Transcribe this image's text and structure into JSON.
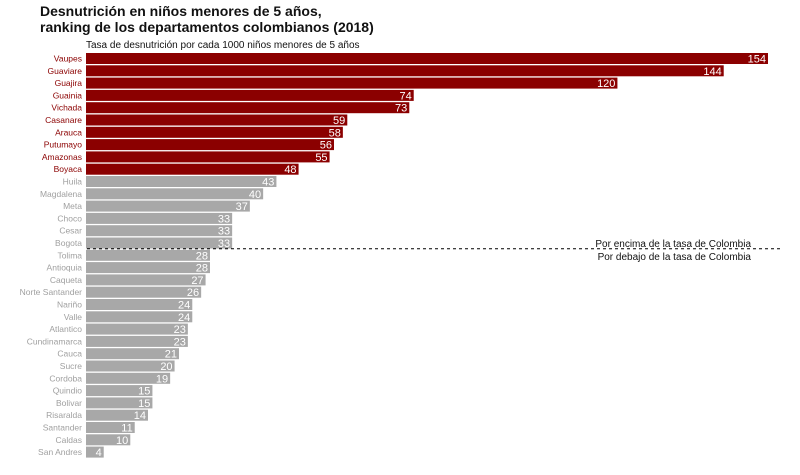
{
  "title_line1": "Desnutrición en niños menores de 5 años,",
  "title_line2": "ranking de los departamentos colombianos (2018)",
  "chart_data": {
    "type": "bar",
    "orientation": "horizontal",
    "title": "Desnutrición en niños menores de 5 años, ranking de los departamentos colombianos (2018)",
    "subtitle": "Tasa de desnutrición por cada 1000 niños menores de 5 años",
    "categories": [
      "Vaupes",
      "Guaviare",
      "Guajira",
      "Guainia",
      "Vichada",
      "Casanare",
      "Arauca",
      "Putumayo",
      "Amazonas",
      "Boyaca",
      "Huila",
      "Magdalena",
      "Meta",
      "Choco",
      "Cesar",
      "Bogota",
      "Tolima",
      "Antioquia",
      "Caqueta",
      "Norte Santander",
      "Nariño",
      "Valle",
      "Atlantico",
      "Cundinamarca",
      "Cauca",
      "Sucre",
      "Cordoba",
      "Quindio",
      "Bolivar",
      "Risaralda",
      "Santander",
      "Caldas",
      "San Andres"
    ],
    "values": [
      154,
      144,
      120,
      74,
      73,
      59,
      58,
      56,
      55,
      48,
      43,
      40,
      37,
      33,
      33,
      33,
      28,
      28,
      27,
      26,
      24,
      24,
      23,
      23,
      21,
      20,
      19,
      15,
      15,
      14,
      11,
      10,
      4
    ],
    "xlim": [
      0,
      154
    ],
    "reference_line": {
      "after_category": "Bogota",
      "label_above": "Por encima de la tasa de Colombia",
      "label_below": "Por debajo de la tasa de Colombia"
    },
    "colors": {
      "above": "#8b0000",
      "below": "#a8a8a8",
      "label_above": "#8b0000",
      "label_below": "#a0a0a0",
      "value_text": "#ffffff"
    },
    "split_index": 10,
    "grid": false,
    "legend": "none"
  }
}
